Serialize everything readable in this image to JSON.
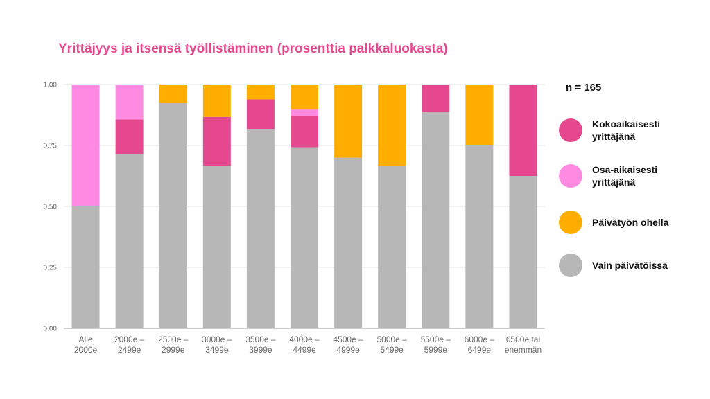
{
  "title": "Yrittäjyys ja itsensä työllistäminen (prosenttia palkkaluokasta)",
  "n_label": "n = 165",
  "colors": {
    "Kokoaikaisesti yrittäjänä": "#e5488e",
    "Osa-aikaisesti yrittäjänä": "#ff8ae1",
    "Päivätyön ohella": "#ffae00",
    "Vain päivätöissä": "#b7b7b7"
  },
  "legend": [
    {
      "label": "Kokoaikaisesti yrittäjänä",
      "color": "#e5488e"
    },
    {
      "label": "Osa-aikaisesti yrittäjänä",
      "color": "#ff8ae1"
    },
    {
      "label": "Päivätyön ohella",
      "color": "#ffae00"
    },
    {
      "label": "Vain päivätöissä",
      "color": "#b7b7b7"
    }
  ],
  "chart_data": {
    "type": "bar",
    "stacked": true,
    "title": "Yrittäjyys ja itsensä työllistäminen (prosenttia palkkaluokasta)",
    "xlabel": "",
    "ylabel": "",
    "ylim": [
      0,
      1
    ],
    "yticks": [
      "0.00",
      "0.25",
      "0.50",
      "0.75",
      "1.00"
    ],
    "ytick_values": [
      0,
      0.25,
      0.5,
      0.75,
      1.0
    ],
    "grid": true,
    "legend_position": "right",
    "categories": [
      [
        "Alle",
        "2000e"
      ],
      [
        "2000e –",
        "2499e"
      ],
      [
        "2500e –",
        "2999e"
      ],
      [
        "3000e –",
        "3499e"
      ],
      [
        "3500e –",
        "3999e"
      ],
      [
        "4000e –",
        "4499e"
      ],
      [
        "4500e –",
        "4999e"
      ],
      [
        "5000e –",
        "5499e"
      ],
      [
        "5500e –",
        "5999e"
      ],
      [
        "6000e –",
        "6499e"
      ],
      [
        "6500e tai",
        "enemmän"
      ]
    ],
    "series": [
      {
        "name": "Vain päivätöissä",
        "values": [
          0.5,
          0.714,
          0.926,
          0.667,
          0.818,
          0.743,
          0.7,
          0.667,
          0.889,
          0.75,
          0.625
        ]
      },
      {
        "name": "Kokoaikaisesti yrittäjänä",
        "values": [
          0.0,
          0.143,
          0.0,
          0.2,
          0.121,
          0.128,
          0.0,
          0.0,
          0.111,
          0.0,
          0.375
        ]
      },
      {
        "name": "Osa-aikaisesti yrittäjänä",
        "values": [
          0.5,
          0.143,
          0.0,
          0.0,
          0.0,
          0.026,
          0.0,
          0.0,
          0.0,
          0.0,
          0.0
        ]
      },
      {
        "name": "Päivätyön ohella",
        "values": [
          0.0,
          0.0,
          0.074,
          0.133,
          0.061,
          0.103,
          0.3,
          0.333,
          0.0,
          0.25,
          0.0
        ]
      }
    ]
  }
}
